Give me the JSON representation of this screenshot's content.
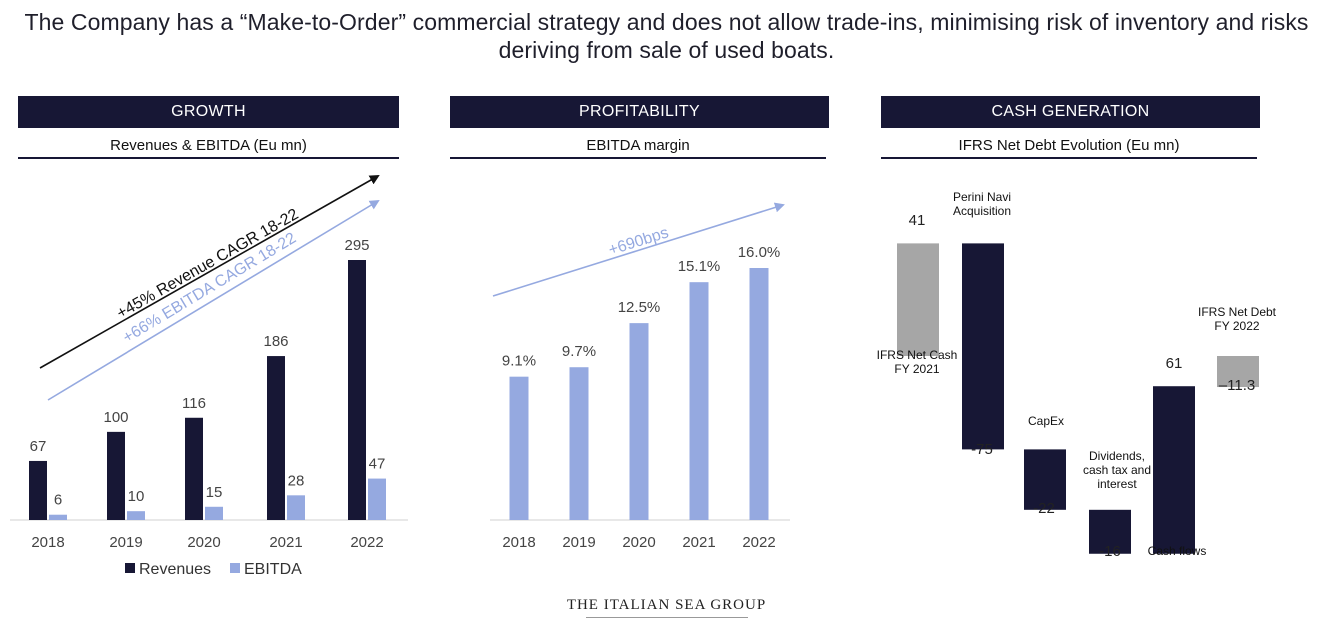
{
  "headline": "The Company has a “Make-to-Order” commercial strategy and does not allow trade-ins, minimising risk of inventory and risks deriving from sale of used boats.",
  "colors": {
    "navy": "#171735",
    "light_blue": "#95a9e0",
    "grey": "#a6a6a6",
    "arrow_black": "#111111"
  },
  "panels": [
    {
      "header": "GROWTH",
      "subtitle": "Revenues & EBITDA (Eu mn)"
    },
    {
      "header": "PROFITABILITY",
      "subtitle": "EBITDA margin"
    },
    {
      "header": "CASH GENERATION",
      "subtitle": "IFRS Net Debt Evolution (Eu mn)"
    }
  ],
  "footer": "THE ITALIAN SEA GROUP",
  "chart_data": [
    {
      "type": "bar",
      "categories": [
        "2018",
        "2019",
        "2020",
        "2021",
        "2022"
      ],
      "series": [
        {
          "name": "Revenues",
          "values": [
            67,
            100,
            116,
            186,
            295
          ],
          "labels": [
            "67",
            "100",
            "116",
            "186",
            "295"
          ]
        },
        {
          "name": "EBITDA",
          "values": [
            6,
            10,
            15,
            28,
            47
          ],
          "labels": [
            "6",
            "10",
            "15",
            "28",
            "47"
          ]
        }
      ],
      "annotations": [
        "+45% Revenue CAGR 18-22",
        "+66% EBITDA CAGR 18-22"
      ],
      "legend": "bottom"
    },
    {
      "type": "bar",
      "categories": [
        "2018",
        "2019",
        "2020",
        "2021",
        "2022"
      ],
      "values": [
        9.1,
        9.7,
        12.5,
        15.1,
        16.0
      ],
      "labels": [
        "9.1%",
        "9.7%",
        "12.5%",
        "15.1%",
        "16.0%"
      ],
      "annotations": [
        "+690bps"
      ]
    },
    {
      "type": "waterfall",
      "steps": [
        {
          "name": "IFRS Net Cash FY 2021",
          "name_lines": [
            "IFRS Net Cash",
            "FY 2021"
          ],
          "value": 41,
          "label": "41",
          "kind": "total"
        },
        {
          "name": "Perini Navi Acquisition",
          "name_lines": [
            "Perini Navi",
            "Acquisition"
          ],
          "value": -75,
          "label": "-75",
          "kind": "delta"
        },
        {
          "name": "CapEx",
          "name_lines": [
            "CapEx"
          ],
          "value": -22,
          "label": "-22",
          "kind": "delta"
        },
        {
          "name": "Dividends, cash tax and interest",
          "name_lines": [
            "Dividends,",
            "cash tax and",
            "interest"
          ],
          "value": -16,
          "label": "-16",
          "kind": "delta"
        },
        {
          "name": "Cash flows",
          "name_lines": [
            "Cash flows"
          ],
          "value": 61,
          "label": "61",
          "kind": "delta"
        },
        {
          "name": "IFRS Net Debt FY 2022",
          "name_lines": [
            "IFRS Net Debt",
            "FY 2022"
          ],
          "value": -11.3,
          "label": "–11.3",
          "kind": "total"
        }
      ]
    }
  ]
}
